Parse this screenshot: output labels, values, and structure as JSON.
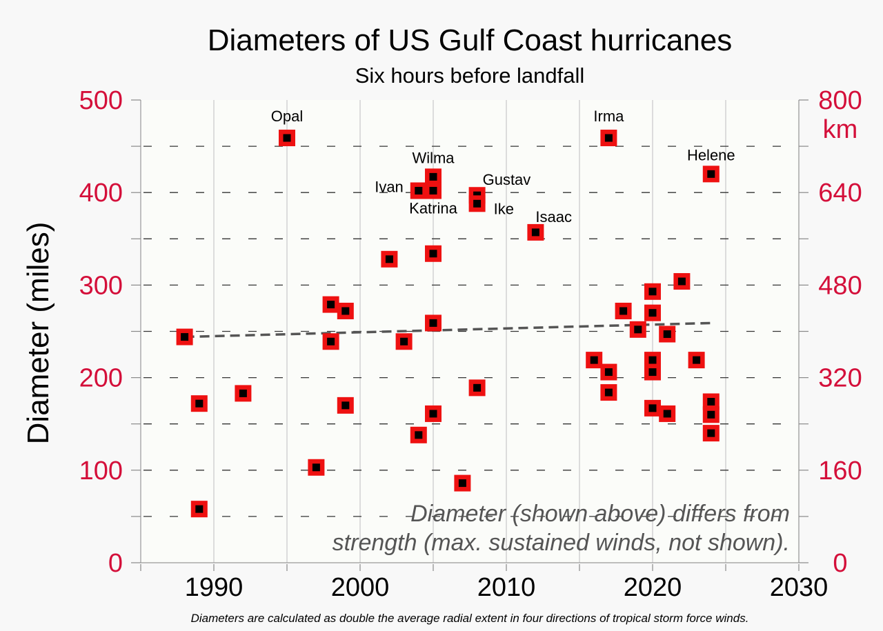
{
  "chart_data": {
    "type": "scatter",
    "title": "Diameters of US Gulf Coast hurricanes",
    "subtitle": "Six hours before landfall",
    "ylabel": "Diameter (miles)",
    "y2label": "km",
    "xlim": [
      1985,
      2030
    ],
    "ylim": [
      0,
      500
    ],
    "y2lim": [
      0,
      800
    ],
    "x_ticks": [
      1990,
      2000,
      2010,
      2020,
      2030
    ],
    "y_ticks": [
      0,
      100,
      200,
      300,
      400,
      500
    ],
    "y2_ticks": [
      0,
      160,
      320,
      480,
      640,
      800
    ],
    "grid": true,
    "trendline": {
      "x": [
        1988,
        2024
      ],
      "y": [
        244,
        259
      ]
    },
    "annotation": [
      "Diameter (shown above) differs from",
      "strength (max. sustained winds, not shown)."
    ],
    "footnote": "Diameters are calculated as double the average radial extent in four directions of tropical storm force winds.",
    "colors": {
      "marker_fill": "#ee1111",
      "marker_center": "#000000",
      "axis_label": "#d40f3a",
      "trendline": "#555555",
      "annotation": "#555555",
      "plot_background": "#fbfcf9"
    },
    "points": [
      {
        "x": 1988,
        "y": 244
      },
      {
        "x": 1989,
        "y": 172
      },
      {
        "x": 1989,
        "y": 58
      },
      {
        "x": 1992,
        "y": 183
      },
      {
        "x": 1995,
        "y": 459,
        "label": "Opal"
      },
      {
        "x": 1997,
        "y": 103
      },
      {
        "x": 1998,
        "y": 279
      },
      {
        "x": 1998,
        "y": 239
      },
      {
        "x": 1999,
        "y": 272
      },
      {
        "x": 1999,
        "y": 170
      },
      {
        "x": 2002,
        "y": 328
      },
      {
        "x": 2003,
        "y": 239
      },
      {
        "x": 2004,
        "y": 402,
        "label": "Ivan"
      },
      {
        "x": 2004,
        "y": 138
      },
      {
        "x": 2005,
        "y": 417,
        "label": "Wilma"
      },
      {
        "x": 2005,
        "y": 402,
        "label": "Katrina"
      },
      {
        "x": 2005,
        "y": 334
      },
      {
        "x": 2005,
        "y": 259
      },
      {
        "x": 2005,
        "y": 161
      },
      {
        "x": 2007,
        "y": 86
      },
      {
        "x": 2008,
        "y": 397,
        "label": "Gustav"
      },
      {
        "x": 2008,
        "y": 388,
        "label": "Ike"
      },
      {
        "x": 2008,
        "y": 189
      },
      {
        "x": 2012,
        "y": 357,
        "label": "Isaac"
      },
      {
        "x": 2016,
        "y": 219
      },
      {
        "x": 2017,
        "y": 459,
        "label": "Irma"
      },
      {
        "x": 2017,
        "y": 206
      },
      {
        "x": 2017,
        "y": 184
      },
      {
        "x": 2018,
        "y": 272
      },
      {
        "x": 2019,
        "y": 252
      },
      {
        "x": 2020,
        "y": 293
      },
      {
        "x": 2020,
        "y": 270
      },
      {
        "x": 2020,
        "y": 219
      },
      {
        "x": 2020,
        "y": 206
      },
      {
        "x": 2020,
        "y": 167
      },
      {
        "x": 2021,
        "y": 247
      },
      {
        "x": 2021,
        "y": 161
      },
      {
        "x": 2022,
        "y": 304
      },
      {
        "x": 2023,
        "y": 219
      },
      {
        "x": 2024,
        "y": 420,
        "label": "Helene"
      },
      {
        "x": 2024,
        "y": 174
      },
      {
        "x": 2024,
        "y": 160
      },
      {
        "x": 2024,
        "y": 140
      }
    ]
  }
}
